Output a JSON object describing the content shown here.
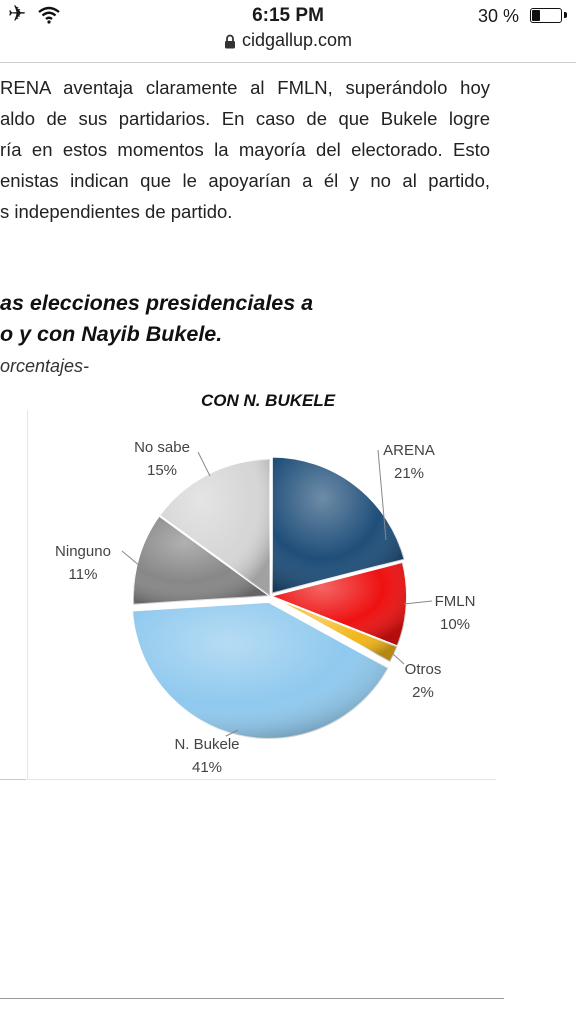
{
  "status_bar": {
    "time": "6:15 PM",
    "battery": "30 %",
    "battery_level": 0.3,
    "icons": [
      "airplane-icon",
      "wifi-icon",
      "battery-icon"
    ]
  },
  "browser": {
    "url": "cidgallup.com",
    "icon": "lock-icon"
  },
  "article": {
    "lines": [
      "RENA aventaja claramente al FMLN, superándolo hoy",
      "aldo de sus partidarios.  En caso de que Bukele logre",
      "ría en estos momentos la mayoría del electorado. Esto",
      "enistas indican que le apoyarían a él y no al partido,",
      "s independientes de partido."
    ],
    "heading_lines": [
      "as elecciones presidenciales a",
      "o y con Nayib Bukele."
    ],
    "subtitle": "orcentajes-"
  },
  "chart_data": {
    "type": "pie",
    "title": "CON N. BUKELE",
    "slices": [
      {
        "label": "ARENA",
        "value": 21,
        "value_label": "21%",
        "color": "#1f4e79"
      },
      {
        "label": "FMLN",
        "value": 10,
        "value_label": "10%",
        "color": "#ee1111"
      },
      {
        "label": "Otros",
        "value": 2,
        "value_label": "2%",
        "color": "#f2b619"
      },
      {
        "label": "N. Bukele",
        "value": 41,
        "value_label": "41%",
        "color": "#8fc9ee"
      },
      {
        "label": "Ninguno",
        "value": 11,
        "value_label": "11%",
        "color": "#878787"
      },
      {
        "label": "No sabe",
        "value": 15,
        "value_label": "15%",
        "color": "#d6d6d6"
      }
    ]
  }
}
